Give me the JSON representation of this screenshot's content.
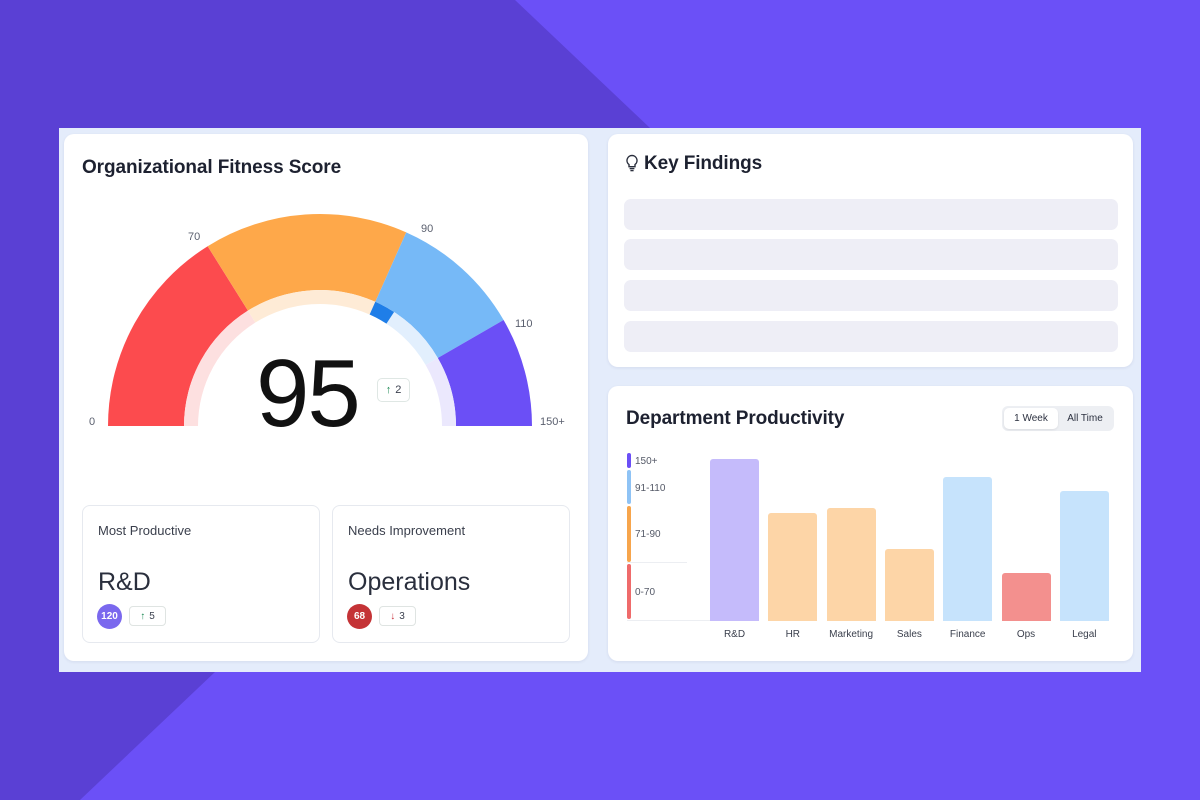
{
  "colors": {
    "background_dark": "#5a40d4",
    "background_light": "#6b50f7",
    "gauge_red": "#fc4b4e",
    "gauge_orange": "#fea84a",
    "gauge_light_blue": "#76b9f7",
    "gauge_purple": "#6b4ff6",
    "gauge_progress_blue": "#1f7ee8"
  },
  "fitness": {
    "title": "Organizational Fitness Score",
    "score": "95",
    "score_value": 95,
    "delta": "2",
    "ticks": [
      "0",
      "70",
      "90",
      "110",
      "150+"
    ],
    "most_productive": {
      "label": "Most Productive",
      "department": "R&D",
      "score": "120",
      "change": "5",
      "badge_color": "#7a68ee"
    },
    "needs_improvement": {
      "label": "Needs Improvement",
      "department": "Operations",
      "score": "68",
      "change": "3",
      "badge_color": "#c43336"
    }
  },
  "findings": {
    "title": "Key Findings",
    "icon": "lightbulb-icon",
    "items": 4
  },
  "productivity": {
    "title": "Department Productivity",
    "toggle": [
      "1 Week",
      "All Time"
    ],
    "active_toggle": "1 Week",
    "legend": [
      {
        "label": "150+",
        "color": "#6b4ff6"
      },
      {
        "label": "91-110",
        "color": "#8fc3f5"
      },
      {
        "label": "71-90",
        "color": "#f7a54c"
      },
      {
        "label": "0-70",
        "color": "#ef6b6b"
      }
    ]
  },
  "chart_data": {
    "type": "bar",
    "categories": [
      "R&D",
      "HR",
      "Marketing",
      "Sales",
      "Finance",
      "Ops",
      "Legal"
    ],
    "values": [
      150,
      100,
      105,
      67,
      133,
      44,
      120
    ],
    "colors": [
      "#c5bbfb",
      "#fdd5a7",
      "#fdd5a7",
      "#fdd5a7",
      "#c6e3fc",
      "#f3908e",
      "#c6e3fc"
    ],
    "legend": [
      "150+",
      "91-110",
      "71-90",
      "0-70"
    ],
    "ylim": [
      0,
      150
    ],
    "title": "Department Productivity"
  }
}
